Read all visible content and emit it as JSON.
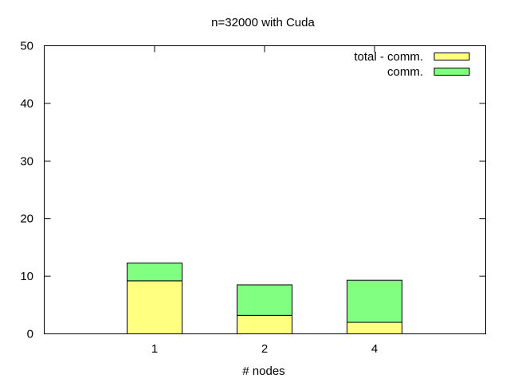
{
  "chart_data": {
    "type": "bar",
    "stacked": true,
    "title": "n=32000 with Cuda",
    "xlabel": "# nodes",
    "ylabel": "",
    "categories": [
      "1",
      "2",
      "4"
    ],
    "ylim": [
      0,
      50
    ],
    "yticks": [
      0,
      10,
      20,
      30,
      40,
      50
    ],
    "grid": false,
    "legend_position": "top-right",
    "series": [
      {
        "name": "total - comm.",
        "color": "#ffff80",
        "values": [
          9.2,
          3.2,
          2.0
        ]
      },
      {
        "name": "comm.",
        "color": "#80ff80",
        "values": [
          3.1,
          5.3,
          7.3
        ]
      }
    ]
  }
}
